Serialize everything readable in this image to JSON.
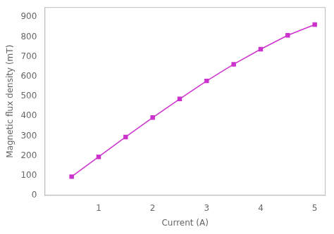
{
  "chart_data": {
    "type": "line",
    "x": [
      0.5,
      1.0,
      1.5,
      2.0,
      2.5,
      3.0,
      3.5,
      4.0,
      4.5,
      5.0
    ],
    "values": [
      95,
      195,
      295,
      393,
      487,
      578,
      662,
      738,
      808,
      862
    ],
    "color": "#cc33cc",
    "marker": "square",
    "xlabel": "Current (A)",
    "ylabel": "Magnetic flux density (mT)",
    "xlim": [
      0,
      5.2
    ],
    "ylim": [
      0,
      950
    ],
    "xticks": [
      1,
      2,
      3,
      4,
      5
    ],
    "yticks": [
      0,
      100,
      200,
      300,
      400,
      500,
      600,
      700,
      800,
      900
    ],
    "grid": false
  }
}
